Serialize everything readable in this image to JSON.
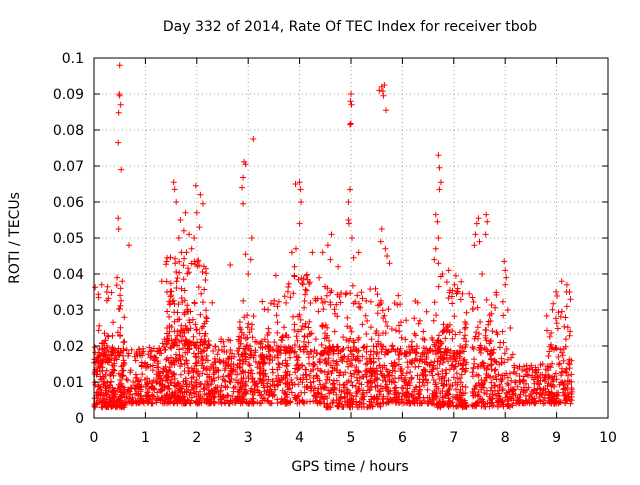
{
  "chart_data": {
    "type": "scatter",
    "title": "Day 332 of 2014, Rate Of TEC Index for receiver tbob",
    "xlabel": "GPS time / hours",
    "ylabel": "ROTI / TECUs",
    "xlim": [
      0,
      10
    ],
    "ylim": [
      0,
      0.1
    ],
    "x_ticks": [
      "0",
      "1",
      "2",
      "3",
      "4",
      "5",
      "6",
      "7",
      "8",
      "9",
      "10"
    ],
    "y_ticks": [
      "0",
      "0.01",
      "0.02",
      "0.03",
      "0.04",
      "0.05",
      "0.06",
      "0.07",
      "0.08",
      "0.09",
      "0.1"
    ],
    "grid": true,
    "marker": "+",
    "color": "#ff0000",
    "series": [
      {
        "name": "ROTI",
        "clusters": [
          {
            "x_range": [
              0.0,
              0.6
            ],
            "y_range": [
              0.003,
              0.02
            ],
            "count": 240
          },
          {
            "x_range": [
              0.0,
              0.6
            ],
            "y_range": [
              0.015,
              0.038
            ],
            "count": 55
          },
          {
            "x_range": [
              0.6,
              1.3
            ],
            "y_range": [
              0.004,
              0.02
            ],
            "count": 180
          },
          {
            "x_range": [
              1.3,
              2.3
            ],
            "y_range": [
              0.004,
              0.022
            ],
            "count": 320
          },
          {
            "x_range": [
              1.4,
              2.2
            ],
            "y_range": [
              0.02,
              0.045
            ],
            "count": 140
          },
          {
            "x_range": [
              2.3,
              3.0
            ],
            "y_range": [
              0.004,
              0.022
            ],
            "count": 200
          },
          {
            "x_range": [
              2.8,
              3.5
            ],
            "y_range": [
              0.015,
              0.033
            ],
            "count": 70
          },
          {
            "x_range": [
              3.0,
              4.5
            ],
            "y_range": [
              0.004,
              0.02
            ],
            "count": 320
          },
          {
            "x_range": [
              3.5,
              4.5
            ],
            "y_range": [
              0.018,
              0.04
            ],
            "count": 110
          },
          {
            "x_range": [
              4.5,
              5.6
            ],
            "y_range": [
              0.003,
              0.02
            ],
            "count": 280
          },
          {
            "x_range": [
              4.5,
              5.6
            ],
            "y_range": [
              0.018,
              0.037
            ],
            "count": 90
          },
          {
            "x_range": [
              5.6,
              6.6
            ],
            "y_range": [
              0.004,
              0.02
            ],
            "count": 240
          },
          {
            "x_range": [
              5.6,
              6.6
            ],
            "y_range": [
              0.018,
              0.032
            ],
            "count": 55
          },
          {
            "x_range": [
              6.6,
              7.25
            ],
            "y_range": [
              0.003,
              0.02
            ],
            "count": 190
          },
          {
            "x_range": [
              6.6,
              7.25
            ],
            "y_range": [
              0.018,
              0.04
            ],
            "count": 75
          },
          {
            "x_range": [
              7.35,
              8.2
            ],
            "y_range": [
              0.003,
              0.02
            ],
            "count": 200
          },
          {
            "x_range": [
              7.35,
              8.0
            ],
            "y_range": [
              0.018,
              0.035
            ],
            "count": 45
          },
          {
            "x_range": [
              8.2,
              9.3
            ],
            "y_range": [
              0.004,
              0.015
            ],
            "count": 230
          },
          {
            "x_range": [
              8.8,
              9.3
            ],
            "y_range": [
              0.015,
              0.036
            ],
            "count": 40
          }
        ],
        "highlights": [
          [
            0.5,
            0.098
          ],
          [
            0.49,
            0.09
          ],
          [
            0.5,
            0.0895
          ],
          [
            0.52,
            0.087
          ],
          [
            0.48,
            0.0848
          ],
          [
            0.47,
            0.0765
          ],
          [
            0.53,
            0.069
          ],
          [
            0.47,
            0.0555
          ],
          [
            0.48,
            0.0525
          ],
          [
            0.68,
            0.048
          ],
          [
            0.45,
            0.039
          ],
          [
            0.55,
            0.038
          ],
          [
            0.52,
            0.036
          ],
          [
            0.15,
            0.037
          ],
          [
            0.25,
            0.035
          ],
          [
            1.55,
            0.0655
          ],
          [
            1.57,
            0.0635
          ],
          [
            1.6,
            0.06
          ],
          [
            1.68,
            0.055
          ],
          [
            1.65,
            0.05
          ],
          [
            1.78,
            0.057
          ],
          [
            1.75,
            0.052
          ],
          [
            1.85,
            0.051
          ],
          [
            1.98,
            0.0645
          ],
          [
            2.0,
            0.057
          ],
          [
            1.95,
            0.05
          ],
          [
            2.07,
            0.062
          ],
          [
            2.12,
            0.0595
          ],
          [
            2.05,
            0.053
          ],
          [
            1.8,
            0.046
          ],
          [
            1.9,
            0.047
          ],
          [
            1.7,
            0.046
          ],
          [
            1.58,
            0.043
          ],
          [
            1.42,
            0.035
          ],
          [
            1.32,
            0.038
          ],
          [
            2.3,
            0.032
          ],
          [
            2.65,
            0.0425
          ],
          [
            2.92,
            0.0712
          ],
          [
            2.95,
            0.0705
          ],
          [
            2.9,
            0.0668
          ],
          [
            2.88,
            0.064
          ],
          [
            2.9,
            0.0595
          ],
          [
            3.1,
            0.0775
          ],
          [
            3.07,
            0.05
          ],
          [
            3.0,
            0.04
          ],
          [
            2.95,
            0.0455
          ],
          [
            3.05,
            0.044
          ],
          [
            3.92,
            0.065
          ],
          [
            4.0,
            0.0655
          ],
          [
            4.02,
            0.0635
          ],
          [
            4.03,
            0.06
          ],
          [
            4.0,
            0.054
          ],
          [
            3.85,
            0.046
          ],
          [
            3.9,
            0.042
          ],
          [
            3.93,
            0.047
          ],
          [
            4.25,
            0.046
          ],
          [
            4.45,
            0.046
          ],
          [
            4.55,
            0.048
          ],
          [
            4.62,
            0.051
          ],
          [
            4.6,
            0.044
          ],
          [
            4.75,
            0.042
          ],
          [
            4.95,
            0.06
          ],
          [
            4.98,
            0.0635
          ],
          [
            4.95,
            0.055
          ],
          [
            4.96,
            0.054
          ],
          [
            4.98,
            0.0815
          ],
          [
            5.0,
            0.0818
          ],
          [
            4.99,
            0.088
          ],
          [
            5.0,
            0.09
          ],
          [
            5.01,
            0.087
          ],
          [
            5.05,
            0.0445
          ],
          [
            5.02,
            0.05
          ],
          [
            5.15,
            0.046
          ],
          [
            5.55,
            0.091
          ],
          [
            5.6,
            0.092
          ],
          [
            5.63,
            0.0895
          ],
          [
            5.65,
            0.0925
          ],
          [
            5.62,
            0.0908
          ],
          [
            5.68,
            0.0855
          ],
          [
            5.6,
            0.0525
          ],
          [
            5.58,
            0.049
          ],
          [
            5.67,
            0.047
          ],
          [
            5.7,
            0.045
          ],
          [
            5.75,
            0.043
          ],
          [
            5.92,
            0.034
          ],
          [
            6.25,
            0.0325
          ],
          [
            6.3,
            0.032
          ],
          [
            6.7,
            0.073
          ],
          [
            6.72,
            0.0695
          ],
          [
            6.75,
            0.0655
          ],
          [
            6.72,
            0.0635
          ],
          [
            6.65,
            0.0565
          ],
          [
            6.68,
            0.0545
          ],
          [
            6.7,
            0.05
          ],
          [
            6.65,
            0.047
          ],
          [
            6.62,
            0.044
          ],
          [
            6.7,
            0.043
          ],
          [
            6.78,
            0.04
          ],
          [
            6.9,
            0.041
          ],
          [
            7.48,
            0.0555
          ],
          [
            7.45,
            0.054
          ],
          [
            7.42,
            0.051
          ],
          [
            7.4,
            0.048
          ],
          [
            7.5,
            0.049
          ],
          [
            7.63,
            0.0565
          ],
          [
            7.65,
            0.0545
          ],
          [
            7.62,
            0.051
          ],
          [
            7.55,
            0.04
          ],
          [
            7.98,
            0.0435
          ],
          [
            8.0,
            0.041
          ],
          [
            8.02,
            0.039
          ],
          [
            8.0,
            0.037
          ],
          [
            8.05,
            0.03
          ],
          [
            8.1,
            0.025
          ],
          [
            7.3,
            0.0345
          ],
          [
            9.1,
            0.038
          ],
          [
            9.2,
            0.037
          ],
          [
            9.25,
            0.035
          ],
          [
            9.27,
            0.033
          ],
          [
            9.2,
            0.031
          ],
          [
            6.8,
            0.026
          ],
          [
            7.95,
            0.024
          ],
          [
            8.95,
            0.019
          ]
        ]
      }
    ]
  }
}
